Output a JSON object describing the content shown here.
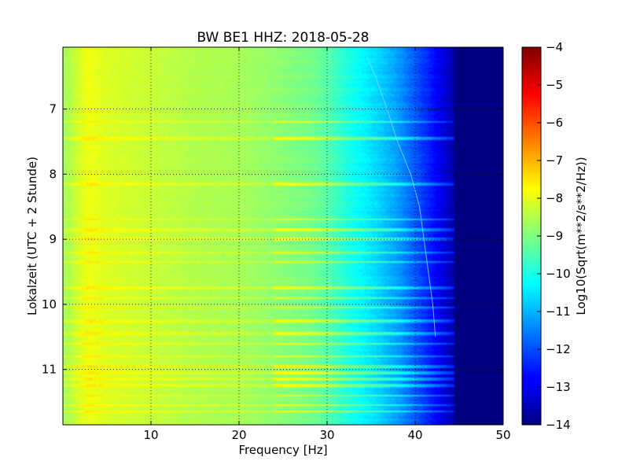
{
  "chart_data": {
    "type": "heatmap",
    "title": "BW BE1 HHZ: 2018-05-28",
    "xlabel": "Frequency [Hz]",
    "ylabel": "Lokalzeit (UTC + 2 Stunde)",
    "xlim": [
      0,
      50
    ],
    "ylim": [
      6.05,
      11.85
    ],
    "y_inverted": true,
    "x_ticks": [
      10,
      20,
      30,
      40,
      50
    ],
    "y_ticks": [
      7,
      8,
      9,
      10,
      11
    ],
    "grid": "dotted",
    "colormap": "jet",
    "colorbar": {
      "label": "Log10(Sqrt(m**2/s**2/Hz))",
      "min": -14,
      "max": -4,
      "ticks": [
        -4,
        -5,
        -6,
        -7,
        -8,
        -9,
        -10,
        -11,
        -12,
        -13,
        -14
      ]
    },
    "spectrum_profile": {
      "frequency_hz": [
        0.5,
        2,
        3,
        5,
        10,
        15,
        20,
        25,
        28,
        30,
        32,
        34,
        36,
        38,
        40,
        42,
        44,
        45,
        50
      ],
      "log_amplitude": [
        -8.6,
        -8.1,
        -7.9,
        -8.1,
        -8.3,
        -8.5,
        -8.6,
        -8.9,
        -9.1,
        -9.4,
        -9.9,
        -10.3,
        -10.7,
        -11.2,
        -11.9,
        -12.6,
        -13.4,
        -14,
        -14
      ]
    },
    "bright_bands_hour": [
      7.2,
      7.45,
      8.15,
      8.7,
      8.85,
      9.0,
      9.2,
      9.35,
      9.75,
      9.9,
      10.05,
      10.25,
      10.45,
      10.6,
      10.8,
      10.95,
      11.05,
      11.15,
      11.25,
      11.4,
      11.55,
      11.65
    ],
    "drift_line": {
      "hour": [
        6.2,
        6.5,
        7.0,
        7.5,
        8.0,
        8.5,
        9.0,
        9.5,
        10.0,
        10.5
      ],
      "frequency_hz": [
        34.5,
        35.5,
        36.8,
        38.0,
        39.5,
        40.5,
        41.0,
        41.5,
        42.0,
        42.3
      ]
    }
  }
}
